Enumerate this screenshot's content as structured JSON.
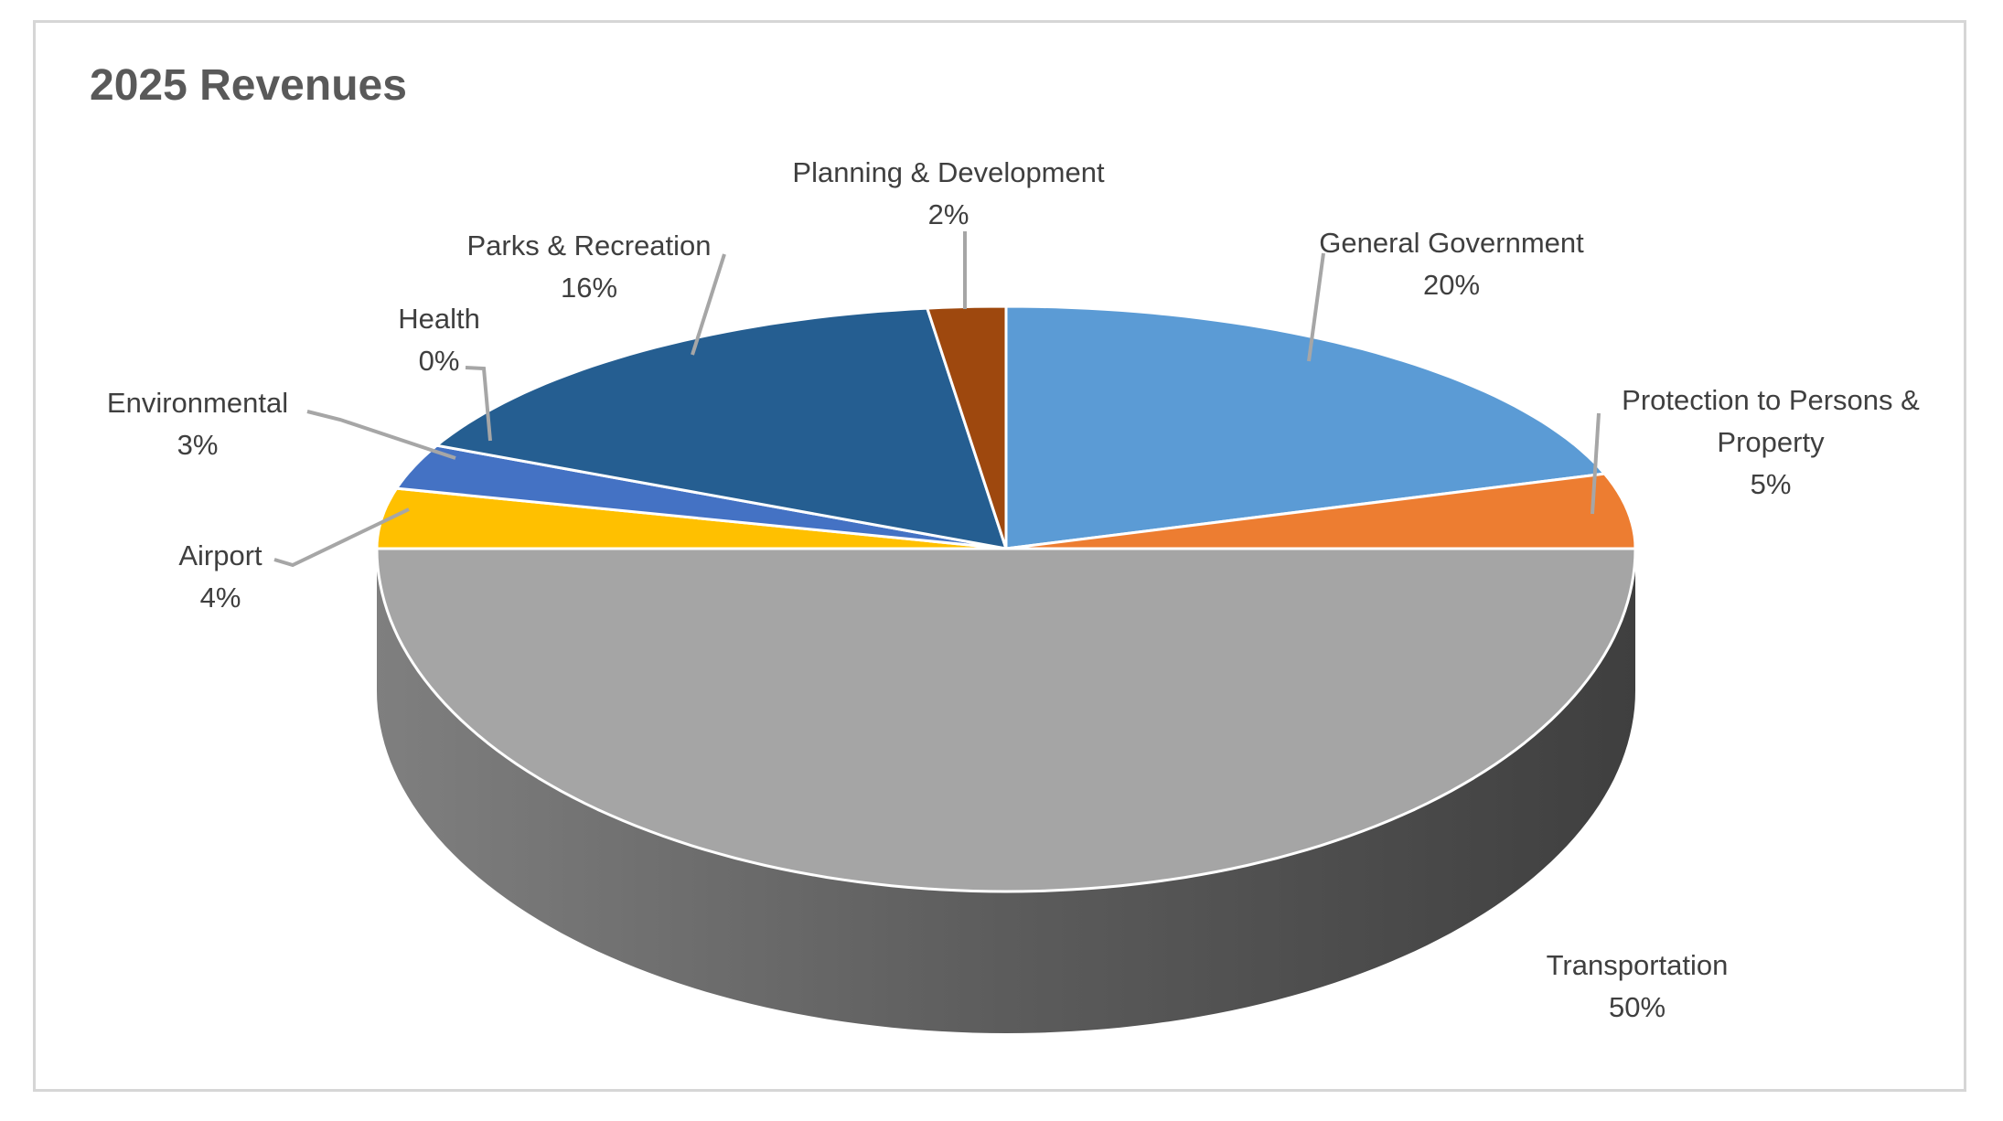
{
  "page": {
    "background": "#FFFFFF",
    "frame_border_color": "#D6D6D6"
  },
  "title": {
    "text": "2025 Revenues",
    "color": "#595959"
  },
  "chart_data": {
    "type": "pie",
    "style": "3d-pie",
    "title": "2025 Revenues",
    "start_angle_deg": 0,
    "direction": "clockwise",
    "legend": "none",
    "data_labels": "category name and percentage outside slices with leader lines",
    "label_text_color": "#3F3F3F",
    "leader_line_color": "#A6A6A6",
    "slice_separator_color": "#FFFFFF",
    "slices": [
      {
        "label": "General Government",
        "pct": 20,
        "pct_label": "20%",
        "color": "#5B9BD5"
      },
      {
        "label": "Protection to Persons & Property",
        "pct": 5,
        "pct_label": "5%",
        "color": "#ED7D31",
        "label_lines": [
          "Protection to Persons &",
          "Property"
        ]
      },
      {
        "label": "Transportation",
        "pct": 50,
        "pct_label": "50%",
        "color": "#A5A5A5"
      },
      {
        "label": "Airport",
        "pct": 4,
        "pct_label": "4%",
        "color": "#FFC000"
      },
      {
        "label": "Environmental",
        "pct": 3,
        "pct_label": "3%",
        "color": "#4472C4"
      },
      {
        "label": "Health",
        "pct": 0,
        "pct_label": "0%",
        "color": "#70AD47"
      },
      {
        "label": "Parks & Recreation",
        "pct": 16,
        "pct_label": "16%",
        "color": "#255E91"
      },
      {
        "label": "Planning & Development",
        "pct": 2,
        "pct_label": "2%",
        "color": "#9E480E"
      }
    ]
  }
}
